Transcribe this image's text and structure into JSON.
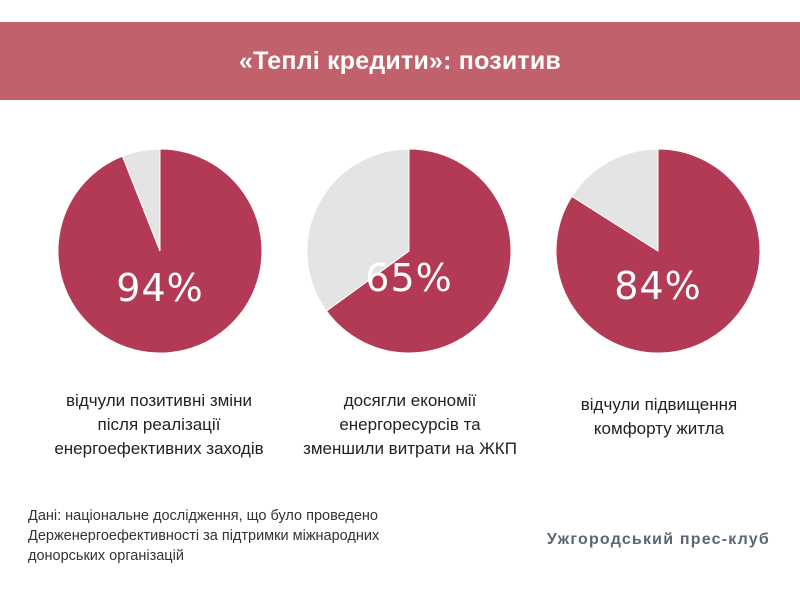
{
  "header": {
    "title": "«Теплі кредити»: позитив"
  },
  "colors": {
    "header_bg": "#c0616c",
    "slice_main": "#b33a54",
    "slice_rest": "#e4e4e4"
  },
  "chart_data": [
    {
      "type": "pie",
      "slices": [
        {
          "label": "94%",
          "value": 94,
          "color": "#b33a54"
        },
        {
          "label": "",
          "value": 6,
          "color": "#e4e4e4"
        }
      ],
      "caption": "відчули позитивні зміни після реалізації енергоефективних заходів"
    },
    {
      "type": "pie",
      "slices": [
        {
          "label": "65%",
          "value": 65,
          "color": "#b33a54"
        },
        {
          "label": "",
          "value": 35,
          "color": "#e4e4e4"
        }
      ],
      "caption": "досягли економії енергоресурсів та зменшили витрати на ЖКП"
    },
    {
      "type": "pie",
      "slices": [
        {
          "label": "84%",
          "value": 84,
          "color": "#b33a54"
        },
        {
          "label": "",
          "value": 16,
          "color": "#e4e4e4"
        }
      ],
      "caption": "відчули підвищення комфорту житла"
    }
  ],
  "footer": {
    "source": "Дані: національне дослідження, що було проведено Держенергоефективності за підтримки міжнародних донорських організацій",
    "brand": "Ужгородський прес-клуб"
  }
}
